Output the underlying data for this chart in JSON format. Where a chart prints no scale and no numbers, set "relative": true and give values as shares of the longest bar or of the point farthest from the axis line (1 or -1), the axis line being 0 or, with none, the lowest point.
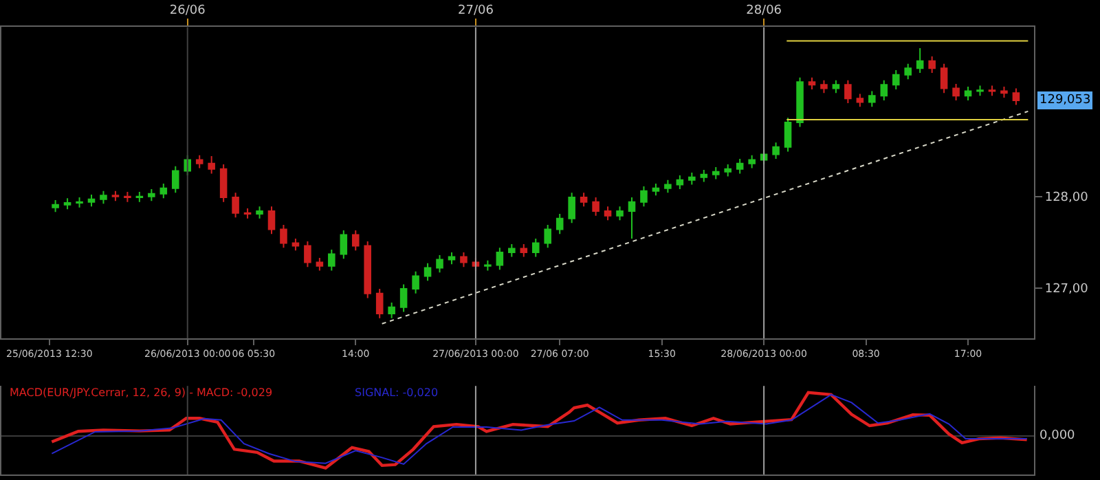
{
  "chart_data": [
    {
      "type": "candlestick",
      "x": [
        "2013-06-25T13:00",
        "2013-06-25T14:00",
        "2013-06-25T15:00",
        "2013-06-25T16:00",
        "2013-06-25T17:00",
        "2013-06-25T18:00",
        "2013-06-25T19:00",
        "2013-06-25T20:00",
        "2013-06-25T21:00",
        "2013-06-25T22:00",
        "2013-06-25T23:00",
        "2013-06-26T00:00",
        "2013-06-26T01:00",
        "2013-06-26T02:00",
        "2013-06-26T03:00",
        "2013-06-26T04:00",
        "2013-06-26T05:00",
        "2013-06-26T06:00",
        "2013-06-26T07:00",
        "2013-06-26T08:00",
        "2013-06-26T09:00",
        "2013-06-26T10:00",
        "2013-06-26T11:00",
        "2013-06-26T12:00",
        "2013-06-26T13:00",
        "2013-06-26T14:00",
        "2013-06-26T15:00",
        "2013-06-26T16:00",
        "2013-06-26T17:00",
        "2013-06-26T18:00",
        "2013-06-26T19:00",
        "2013-06-26T20:00",
        "2013-06-26T21:00",
        "2013-06-26T22:00",
        "2013-06-26T23:00",
        "2013-06-27T00:00",
        "2013-06-27T01:00",
        "2013-06-27T02:00",
        "2013-06-27T03:00",
        "2013-06-27T04:00",
        "2013-06-27T05:00",
        "2013-06-27T06:00",
        "2013-06-27T07:00",
        "2013-06-27T08:00",
        "2013-06-27T09:00",
        "2013-06-27T10:00",
        "2013-06-27T11:00",
        "2013-06-27T12:00",
        "2013-06-27T13:00",
        "2013-06-27T14:00",
        "2013-06-27T15:00",
        "2013-06-27T16:00",
        "2013-06-27T17:00",
        "2013-06-27T18:00",
        "2013-06-27T19:00",
        "2013-06-27T20:00",
        "2013-06-27T21:00",
        "2013-06-27T22:00",
        "2013-06-27T23:00",
        "2013-06-28T00:00",
        "2013-06-28T01:00",
        "2013-06-28T02:00",
        "2013-06-28T03:00",
        "2013-06-28T04:00",
        "2013-06-28T05:00",
        "2013-06-28T06:00",
        "2013-06-28T07:00",
        "2013-06-28T08:00",
        "2013-06-28T09:00",
        "2013-06-28T10:00",
        "2013-06-28T11:00",
        "2013-06-28T12:00",
        "2013-06-28T13:00",
        "2013-06-28T14:00",
        "2013-06-28T15:00",
        "2013-06-28T16:00",
        "2013-06-28T17:00",
        "2013-06-28T18:00",
        "2013-06-28T19:00",
        "2013-06-28T20:00",
        "2013-06-28T21:00"
      ],
      "ohlc": [
        [
          127.88,
          127.96,
          127.83,
          127.91
        ],
        [
          127.91,
          127.98,
          127.86,
          127.93
        ],
        [
          127.93,
          127.99,
          127.88,
          127.94
        ],
        [
          127.94,
          128.02,
          127.89,
          127.97
        ],
        [
          127.97,
          128.06,
          127.92,
          128.01
        ],
        [
          128.01,
          128.06,
          127.95,
          128.0
        ],
        [
          128.0,
          128.05,
          127.94,
          127.99
        ],
        [
          127.99,
          128.05,
          127.94,
          128.0
        ],
        [
          128.0,
          128.08,
          127.95,
          128.03
        ],
        [
          128.03,
          128.14,
          127.98,
          128.09
        ],
        [
          128.09,
          128.33,
          128.04,
          128.28
        ],
        [
          128.28,
          128.45,
          128.23,
          128.4
        ],
        [
          128.4,
          128.45,
          128.31,
          128.36
        ],
        [
          128.36,
          128.44,
          128.25,
          128.3
        ],
        [
          128.3,
          128.35,
          127.94,
          127.99
        ],
        [
          127.99,
          128.04,
          127.77,
          127.82
        ],
        [
          127.82,
          127.87,
          127.76,
          127.81
        ],
        [
          127.81,
          127.89,
          127.76,
          127.84
        ],
        [
          127.84,
          127.89,
          127.59,
          127.64
        ],
        [
          127.64,
          127.69,
          127.44,
          127.49
        ],
        [
          127.49,
          127.54,
          127.41,
          127.46
        ],
        [
          127.46,
          127.51,
          127.23,
          127.28
        ],
        [
          127.28,
          127.33,
          127.19,
          127.24
        ],
        [
          127.24,
          127.42,
          127.19,
          127.37
        ],
        [
          127.37,
          127.63,
          127.32,
          127.58
        ],
        [
          127.58,
          127.63,
          127.41,
          127.46
        ],
        [
          127.46,
          127.51,
          126.89,
          126.94
        ],
        [
          126.94,
          126.99,
          126.67,
          126.72
        ],
        [
          126.72,
          126.84,
          126.67,
          126.79
        ],
        [
          126.79,
          127.04,
          126.74,
          126.99
        ],
        [
          126.99,
          127.18,
          126.94,
          127.13
        ],
        [
          127.13,
          127.27,
          127.08,
          127.22
        ],
        [
          127.22,
          127.36,
          127.17,
          127.31
        ],
        [
          127.31,
          127.39,
          127.26,
          127.34
        ],
        [
          127.34,
          127.39,
          127.23,
          127.28
        ],
        [
          127.28,
          127.33,
          127.19,
          127.24
        ],
        [
          127.24,
          127.3,
          127.19,
          127.25
        ],
        [
          127.25,
          127.44,
          127.2,
          127.39
        ],
        [
          127.39,
          127.48,
          127.34,
          127.43
        ],
        [
          127.43,
          127.48,
          127.34,
          127.39
        ],
        [
          127.39,
          127.54,
          127.34,
          127.49
        ],
        [
          127.49,
          127.69,
          127.44,
          127.64
        ],
        [
          127.64,
          127.81,
          127.59,
          127.76
        ],
        [
          127.76,
          128.04,
          127.71,
          127.99
        ],
        [
          127.99,
          128.04,
          127.89,
          127.94
        ],
        [
          127.94,
          127.99,
          127.79,
          127.84
        ],
        [
          127.84,
          127.89,
          127.74,
          127.79
        ],
        [
          127.79,
          127.89,
          127.74,
          127.84
        ],
        [
          127.84,
          127.99,
          127.54,
          127.94
        ],
        [
          127.94,
          128.11,
          127.89,
          128.06
        ],
        [
          128.06,
          128.14,
          128.01,
          128.09
        ],
        [
          128.09,
          128.18,
          128.04,
          128.13
        ],
        [
          128.13,
          128.23,
          128.08,
          128.18
        ],
        [
          128.18,
          128.26,
          128.13,
          128.21
        ],
        [
          128.21,
          128.29,
          128.16,
          128.24
        ],
        [
          128.24,
          128.32,
          128.19,
          128.27
        ],
        [
          128.27,
          128.35,
          128.22,
          128.3
        ],
        [
          128.3,
          128.41,
          128.25,
          128.36
        ],
        [
          128.36,
          128.45,
          128.31,
          128.4
        ],
        [
          128.4,
          128.51,
          128.35,
          128.46
        ],
        [
          128.46,
          128.59,
          128.41,
          128.54
        ],
        [
          128.54,
          128.86,
          128.49,
          128.81
        ],
        [
          128.81,
          129.3,
          128.76,
          129.25
        ],
        [
          129.25,
          129.3,
          129.17,
          129.22
        ],
        [
          129.22,
          129.27,
          129.13,
          129.18
        ],
        [
          129.18,
          129.27,
          129.13,
          129.22
        ],
        [
          129.22,
          129.27,
          129.02,
          129.07
        ],
        [
          129.07,
          129.12,
          128.98,
          129.03
        ],
        [
          129.03,
          129.15,
          128.98,
          129.1
        ],
        [
          129.1,
          129.27,
          129.05,
          129.22
        ],
        [
          129.22,
          129.38,
          129.17,
          129.33
        ],
        [
          129.33,
          129.45,
          129.28,
          129.4
        ],
        [
          129.4,
          129.62,
          129.35,
          129.48
        ],
        [
          129.48,
          129.53,
          129.35,
          129.4
        ],
        [
          129.4,
          129.45,
          129.13,
          129.18
        ],
        [
          129.18,
          129.23,
          129.05,
          129.1
        ],
        [
          129.1,
          129.2,
          129.05,
          129.15
        ],
        [
          129.15,
          129.21,
          129.1,
          129.16
        ],
        [
          129.16,
          129.21,
          129.1,
          129.15
        ],
        [
          129.15,
          129.2,
          129.08,
          129.13
        ],
        [
          129.13,
          129.18,
          129.0,
          129.05
        ]
      ],
      "series": [
        {
          "type": "line",
          "color": "#d8d8c8",
          "line_style": "dotted",
          "x": [
            "2013-06-26T16:12",
            "2013-06-28T22:00"
          ],
          "values": [
            126.61,
            128.93
          ]
        },
        {
          "type": "line",
          "color": "#e0d040",
          "line_style": "solid",
          "x": [
            "2013-06-28T01:54",
            "2013-06-28T22:00"
          ],
          "values": [
            129.7,
            129.7
          ]
        },
        {
          "type": "line",
          "color": "#e0d040",
          "line_style": "solid",
          "x": [
            "2013-06-28T01:54",
            "2013-06-28T22:00"
          ],
          "values": [
            128.84,
            128.84
          ]
        }
      ],
      "xlim": [
        "2013-06-25T08:30",
        "2013-06-28T22:30"
      ],
      "xticks": [
        {
          "value": "2013-06-25T12:30",
          "label": "25/06/2013 12:30"
        },
        {
          "value": "2013-06-26T00:00",
          "label": "26/06/2013 00:00"
        },
        {
          "value": "2013-06-26T05:30",
          "label": "06 05:30"
        },
        {
          "value": "2013-06-26T14:00",
          "label": "14:00"
        },
        {
          "value": "2013-06-27T00:00",
          "label": "27/06/2013 00:00"
        },
        {
          "value": "2013-06-27T07:00",
          "label": "27/06 07:00"
        },
        {
          "value": "2013-06-27T15:30",
          "label": "15:30"
        },
        {
          "value": "2013-06-28T00:00",
          "label": "28/06/2013 00:00"
        },
        {
          "value": "2013-06-28T08:30",
          "label": "08:30"
        },
        {
          "value": "2013-06-28T17:00",
          "label": "17:00"
        }
      ],
      "x2lim": [
        "2013-06-25T08:30",
        "2013-06-28T22:30"
      ],
      "x2ticks": [
        {
          "value": "2013-06-26T00:00",
          "label": "26/06"
        },
        {
          "value": "2013-06-27T00:00",
          "label": "27/06"
        },
        {
          "value": "2013-06-28T00:00",
          "label": "28/06"
        }
      ],
      "ylim": [
        126.45,
        129.85
      ],
      "yticks": [
        {
          "value": 127,
          "label": "127,00"
        },
        {
          "value": 128,
          "label": "128,00"
        }
      ],
      "ref_lines": [
        {
          "axis": "x",
          "value": "2013-06-26T00:00",
          "color": "#404040"
        },
        {
          "axis": "x",
          "value": "2013-06-27T00:00",
          "color": "#a0a0a0"
        },
        {
          "axis": "x",
          "value": "2013-06-28T00:00",
          "color": "#a0a0a0"
        }
      ],
      "annotations": [
        "129,053"
      ],
      "grid": false
    },
    {
      "type": "line",
      "relative": true,
      "tick_labels": false,
      "legend": false,
      "grid": false,
      "xlim": [
        "2013-06-25T08:30",
        "2013-06-28T22:30"
      ],
      "series": [
        {
          "name": "MACD(EUR/JPY.Cerrar, 12, 26, 9) - MACD: -0,029",
          "color": "#e02020",
          "x": [
            "2013-06-25T12:42",
            "2013-06-25T14:54",
            "2013-06-25T17:00",
            "2013-06-25T20:00",
            "2013-06-25T22:30",
            "2013-06-25T23:54",
            "2013-06-26T01:00",
            "2013-06-26T02:30",
            "2013-06-26T03:54",
            "2013-06-26T05:48",
            "2013-06-26T07:12",
            "2013-06-26T09:18",
            "2013-06-26T11:30",
            "2013-06-26T13:42",
            "2013-06-26T15:06",
            "2013-06-26T16:12",
            "2013-06-26T17:18",
            "2013-06-26T18:48",
            "2013-06-26T20:30",
            "2013-06-26T22:24",
            "2013-06-27T00:12",
            "2013-06-27T00:54",
            "2013-06-27T03:06",
            "2013-06-27T06:00",
            "2013-06-27T07:48",
            "2013-06-27T08:12",
            "2013-06-27T09:18",
            "2013-06-27T10:18",
            "2013-06-27T11:48",
            "2013-06-27T13:36",
            "2013-06-27T15:48",
            "2013-06-27T18:00",
            "2013-06-27T19:48",
            "2013-06-27T21:12",
            "2013-06-28T00:12",
            "2013-06-28T02:18",
            "2013-06-28T03:42",
            "2013-06-28T05:36",
            "2013-06-28T07:18",
            "2013-06-28T08:48",
            "2013-06-28T10:18",
            "2013-06-28T12:24",
            "2013-06-28T13:48",
            "2013-06-28T15:24",
            "2013-06-28T16:30",
            "2013-06-28T17:54",
            "2013-06-28T19:42",
            "2013-06-28T21:54"
          ],
          "values": [
            -0.13,
            0.11,
            0.14,
            0.12,
            0.14,
            0.41,
            0.41,
            0.32,
            -0.3,
            -0.37,
            -0.57,
            -0.57,
            -0.73,
            -0.26,
            -0.35,
            -0.67,
            -0.65,
            -0.3,
            0.22,
            0.27,
            0.22,
            0.11,
            0.27,
            0.22,
            0.55,
            0.65,
            0.71,
            0.55,
            0.3,
            0.37,
            0.41,
            0.24,
            0.41,
            0.28,
            0.34,
            0.38,
            1.0,
            0.95,
            0.5,
            0.24,
            0.3,
            0.49,
            0.48,
            0.05,
            -0.15,
            -0.06,
            -0.04,
            -0.08
          ]
        },
        {
          "name": "SIGNAL: -0,020",
          "color": "#2828d0",
          "x": [
            "2013-06-25T12:42",
            "2013-06-25T16:18",
            "2013-06-25T20:00",
            "2013-06-25T22:48",
            "2013-06-26T01:24",
            "2013-06-26T02:48",
            "2013-06-26T04:42",
            "2013-06-26T06:48",
            "2013-06-26T09:00",
            "2013-06-26T11:30",
            "2013-06-26T14:00",
            "2013-06-26T16:12",
            "2013-06-26T18:00",
            "2013-06-26T19:54",
            "2013-06-26T22:06",
            "2013-06-27T00:54",
            "2013-06-27T03:48",
            "2013-06-27T06:00",
            "2013-06-27T08:12",
            "2013-06-27T10:18",
            "2013-06-27T12:12",
            "2013-06-27T15:30",
            "2013-06-27T18:42",
            "2013-06-27T20:54",
            "2013-06-28T00:12",
            "2013-06-28T02:18",
            "2013-06-28T05:36",
            "2013-06-28T07:18",
            "2013-06-28T09:30",
            "2013-06-28T11:18",
            "2013-06-28T13:48",
            "2013-06-28T15:24",
            "2013-06-28T16:48",
            "2013-06-28T19:00",
            "2013-06-28T21:54"
          ],
          "values": [
            -0.4,
            0.1,
            0.12,
            0.19,
            0.4,
            0.37,
            -0.17,
            -0.4,
            -0.58,
            -0.62,
            -0.33,
            -0.49,
            -0.64,
            -0.17,
            0.21,
            0.21,
            0.14,
            0.26,
            0.35,
            0.66,
            0.37,
            0.37,
            0.28,
            0.34,
            0.28,
            0.37,
            0.95,
            0.77,
            0.3,
            0.37,
            0.51,
            0.28,
            -0.06,
            -0.06,
            -0.06
          ]
        }
      ],
      "ref_lines": [
        {
          "axis": "x",
          "value": "2013-06-26T00:00",
          "color": "#404040"
        },
        {
          "axis": "x",
          "value": "2013-06-27T00:00",
          "color": "#a0a0a0"
        },
        {
          "axis": "x",
          "value": "2013-06-28T00:00",
          "color": "#a0a0a0"
        }
      ],
      "annotations": [
        "0,000"
      ]
    }
  ]
}
